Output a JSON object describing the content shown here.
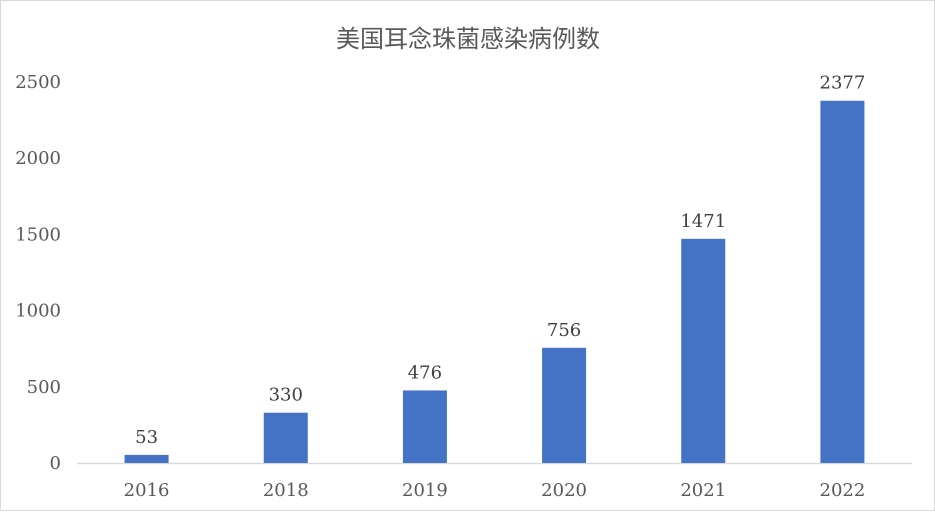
{
  "chart_data": {
    "type": "bar",
    "title": "美国耳念珠菌感染病例数",
    "xlabel": "",
    "ylabel": "",
    "categories": [
      "2016",
      "2018",
      "2019",
      "2020",
      "2021",
      "2022"
    ],
    "values": [
      53,
      330,
      476,
      756,
      1471,
      2377
    ],
    "ylim": [
      0,
      2500
    ],
    "yticks": [
      0,
      500,
      1000,
      1500,
      2000,
      2500
    ],
    "grid": false,
    "legend": "none",
    "bar_color": "#4472c4",
    "axis_color": "#d9d9d9",
    "show_data_labels": true
  }
}
